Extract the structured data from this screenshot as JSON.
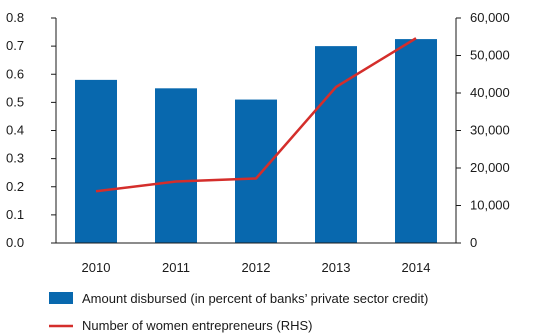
{
  "chart_data": {
    "type": "bar",
    "categories": [
      "2010",
      "2011",
      "2012",
      "2013",
      "2014"
    ],
    "series": [
      {
        "name": "Amount disbursed (in percent of banks’ private sector credit)",
        "type": "bar",
        "axis": "left",
        "values": [
          0.58,
          0.55,
          0.51,
          0.7,
          0.725
        ],
        "color": "#0868ae"
      },
      {
        "name": "Number of women entrepreneurs (RHS)",
        "type": "line",
        "axis": "right",
        "values": [
          13800,
          16400,
          17200,
          41600,
          54600
        ],
        "color": "#d42e2b"
      }
    ],
    "y_left": {
      "ylim": [
        0,
        0.8
      ],
      "ticks": [
        0.0,
        0.1,
        0.2,
        0.3,
        0.4,
        0.5,
        0.6,
        0.7,
        0.8
      ],
      "tick_labels": [
        "0.0",
        "0.1",
        "0.2",
        "0.3",
        "0.4",
        "0.5",
        "0.6",
        "0.7",
        "0.8"
      ]
    },
    "y_right": {
      "ylim": [
        0,
        60000
      ],
      "ticks": [
        0,
        10000,
        20000,
        30000,
        40000,
        50000,
        60000
      ],
      "tick_labels": [
        "0",
        "10,000",
        "20,000",
        "30,000",
        "40,000",
        "50,000",
        "60,000"
      ]
    },
    "title": "",
    "xlabel": "",
    "grid": false,
    "legend_position": "bottom"
  }
}
